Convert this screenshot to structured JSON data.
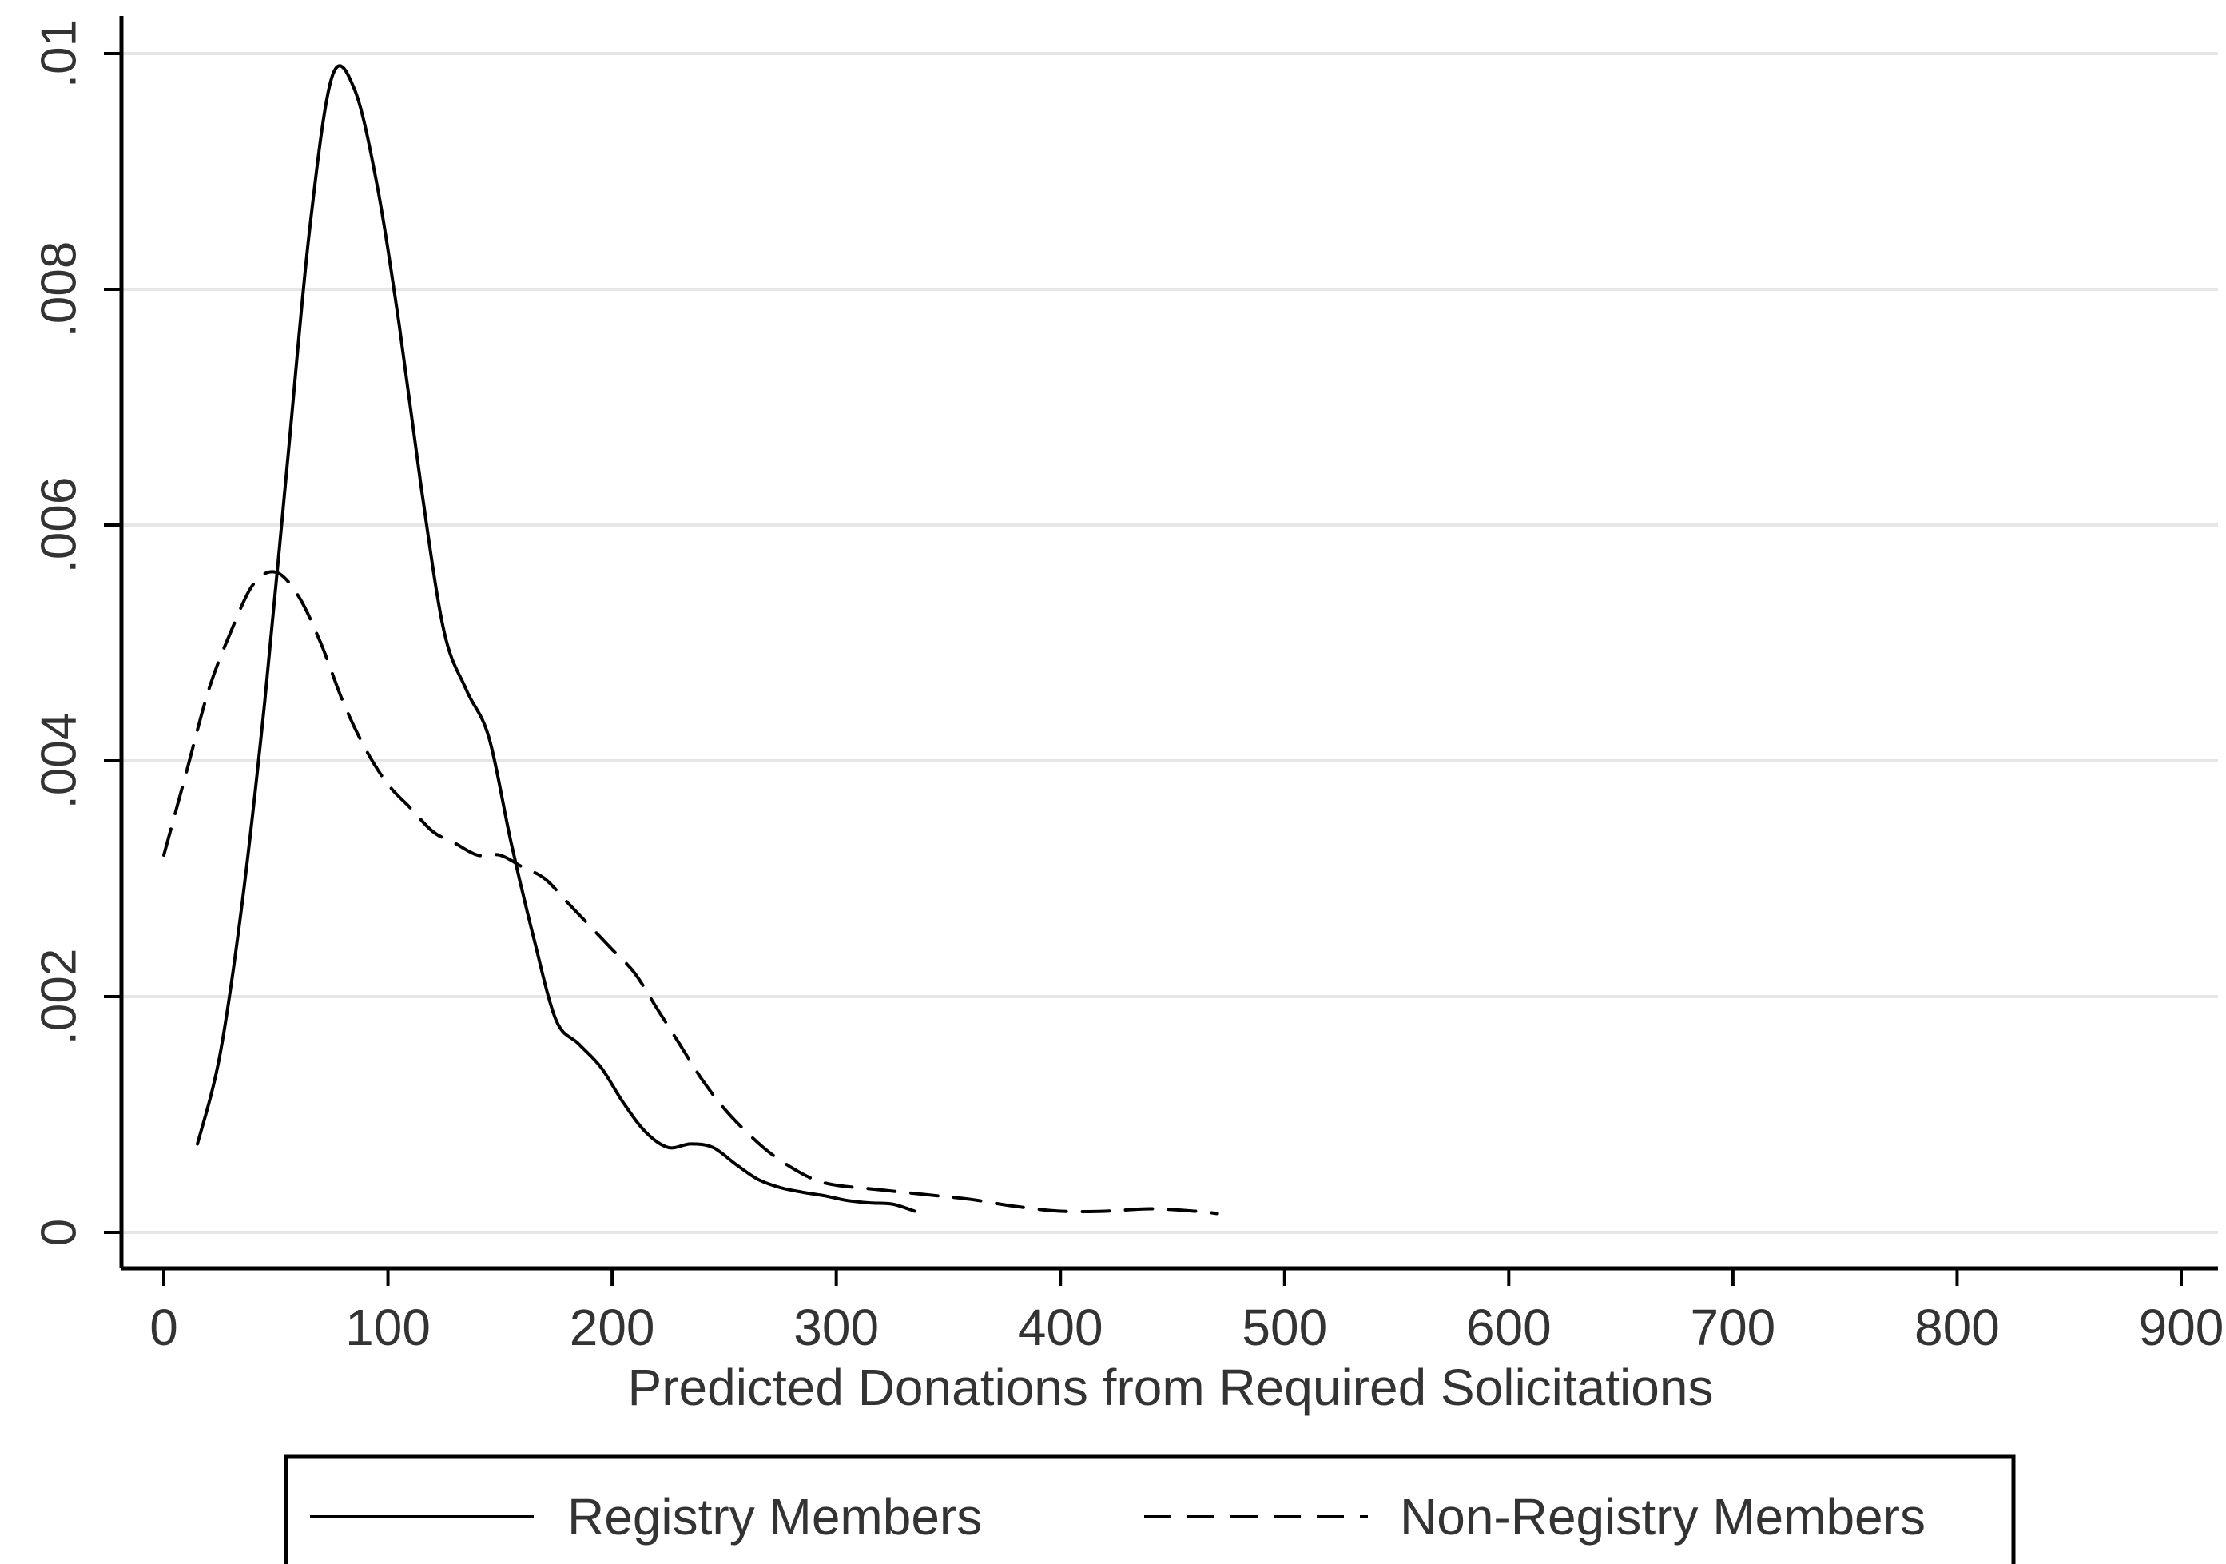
{
  "chart_data": {
    "type": "line",
    "title": "",
    "xlabel": "Predicted Donations from Required Solicitations",
    "ylabel": "",
    "xlim": [
      0,
      900
    ],
    "ylim": [
      0,
      0.01
    ],
    "x_ticks": [
      0,
      100,
      200,
      300,
      400,
      500,
      600,
      700,
      800,
      900
    ],
    "x_tick_labels": [
      "0",
      "100",
      "200",
      "300",
      "400",
      "500",
      "600",
      "700",
      "800",
      "900"
    ],
    "y_ticks": [
      0,
      0.002,
      0.004,
      0.006,
      0.008,
      0.01
    ],
    "y_tick_labels": [
      "0",
      ".002",
      ".004",
      ".006",
      ".008",
      ".01"
    ],
    "grid": "horizontal",
    "legend_position": "bottom",
    "series": [
      {
        "name": "Registry Members",
        "style": "solid",
        "color": "#000000",
        "points": [
          [
            15,
            0.00075
          ],
          [
            25,
            0.0015
          ],
          [
            35,
            0.0028
          ],
          [
            45,
            0.0045
          ],
          [
            55,
            0.0065
          ],
          [
            65,
            0.0085
          ],
          [
            75,
            0.0098
          ],
          [
            85,
            0.0097
          ],
          [
            95,
            0.0089
          ],
          [
            105,
            0.0077
          ],
          [
            115,
            0.0063
          ],
          [
            125,
            0.0051
          ],
          [
            135,
            0.0046
          ],
          [
            145,
            0.0042
          ],
          [
            155,
            0.0033
          ],
          [
            165,
            0.0025
          ],
          [
            175,
            0.0018
          ],
          [
            185,
            0.0016
          ],
          [
            195,
            0.0014
          ],
          [
            205,
            0.0011
          ],
          [
            215,
            0.00085
          ],
          [
            225,
            0.00072
          ],
          [
            235,
            0.00075
          ],
          [
            245,
            0.00072
          ],
          [
            255,
            0.00058
          ],
          [
            265,
            0.00045
          ],
          [
            275,
            0.00038
          ],
          [
            285,
            0.00034
          ],
          [
            295,
            0.00031
          ],
          [
            305,
            0.00027
          ],
          [
            315,
            0.00025
          ],
          [
            325,
            0.00024
          ],
          [
            335,
            0.00018
          ]
        ]
      },
      {
        "name": "Non-Registry Members",
        "style": "dashed",
        "color": "#000000",
        "points": [
          [
            0,
            0.0032
          ],
          [
            10,
            0.0039
          ],
          [
            20,
            0.0046
          ],
          [
            30,
            0.0051
          ],
          [
            40,
            0.0055
          ],
          [
            50,
            0.0056
          ],
          [
            60,
            0.0054
          ],
          [
            70,
            0.005
          ],
          [
            80,
            0.0045
          ],
          [
            90,
            0.0041
          ],
          [
            100,
            0.0038
          ],
          [
            110,
            0.0036
          ],
          [
            120,
            0.0034
          ],
          [
            130,
            0.0033
          ],
          [
            140,
            0.0032
          ],
          [
            150,
            0.0032
          ],
          [
            160,
            0.0031
          ],
          [
            170,
            0.003
          ],
          [
            180,
            0.0028
          ],
          [
            190,
            0.0026
          ],
          [
            200,
            0.0024
          ],
          [
            210,
            0.0022
          ],
          [
            220,
            0.0019
          ],
          [
            230,
            0.0016
          ],
          [
            240,
            0.0013
          ],
          [
            250,
            0.00105
          ],
          [
            260,
            0.00085
          ],
          [
            270,
            0.00068
          ],
          [
            280,
            0.00055
          ],
          [
            290,
            0.00045
          ],
          [
            300,
            0.0004
          ],
          [
            320,
            0.00036
          ],
          [
            340,
            0.00032
          ],
          [
            360,
            0.00028
          ],
          [
            380,
            0.00022
          ],
          [
            400,
            0.00018
          ],
          [
            420,
            0.00018
          ],
          [
            440,
            0.0002
          ],
          [
            460,
            0.00018
          ],
          [
            470,
            0.00016
          ]
        ]
      }
    ],
    "legend": [
      {
        "label": "Registry Members",
        "style": "solid"
      },
      {
        "label": "Non-Registry Members",
        "style": "dashed"
      }
    ],
    "colors": {
      "axis": "#000000",
      "grid": "#e6e6e6",
      "text": "#333333",
      "background": "#ffffff"
    }
  }
}
